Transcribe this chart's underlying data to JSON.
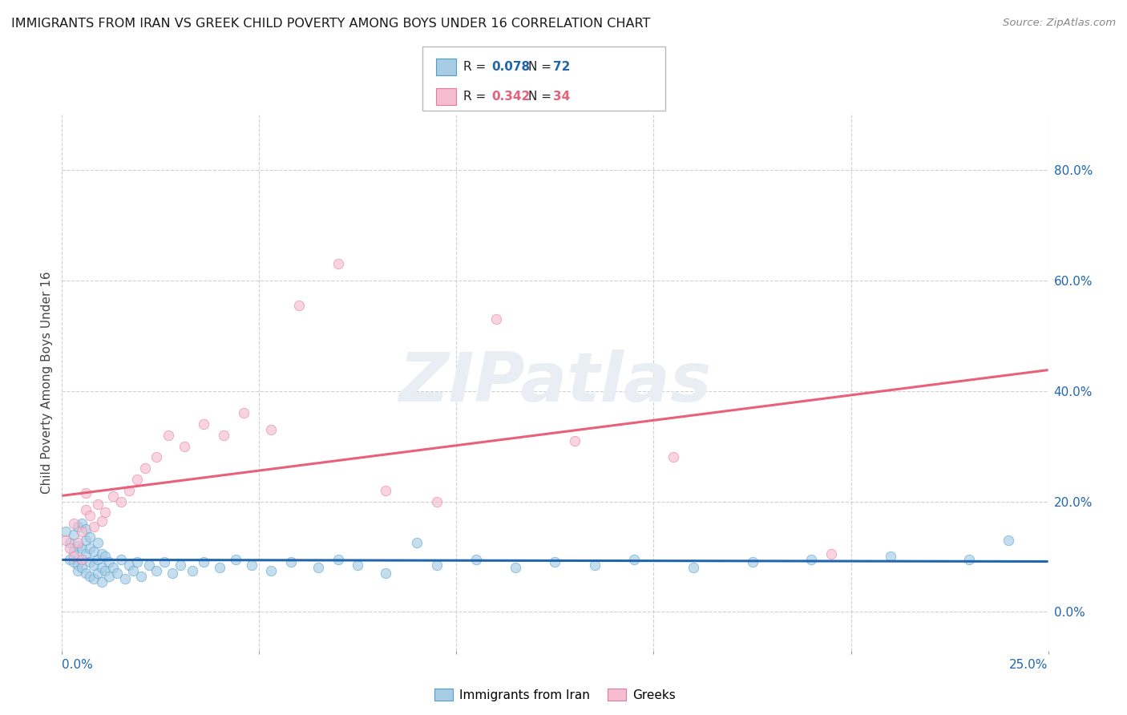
{
  "title": "IMMIGRANTS FROM IRAN VS GREEK CHILD POVERTY AMONG BOYS UNDER 16 CORRELATION CHART",
  "source": "Source: ZipAtlas.com",
  "ylabel": "Child Poverty Among Boys Under 16",
  "ytick_vals": [
    0.0,
    0.2,
    0.4,
    0.6,
    0.8
  ],
  "ytick_labels": [
    "0.0%",
    "20.0%",
    "40.0%",
    "60.0%",
    "80.0%"
  ],
  "xlim": [
    0.0,
    0.25
  ],
  "ylim": [
    -0.07,
    0.9
  ],
  "legend1_r": "0.078",
  "legend1_n": "72",
  "legend2_r": "0.342",
  "legend2_n": "34",
  "color_blue_fill": "#a8cce4",
  "color_pink_fill": "#f4bdd0",
  "color_blue_edge": "#4d9fcf",
  "color_pink_edge": "#e8789a",
  "color_blue_line": "#2166ac",
  "color_pink_line": "#e8607a",
  "color_blue_text": "#2166ac",
  "color_pink_text": "#e8607a",
  "grid_color": "#d0d0d0",
  "scatter_blue_x": [
    0.001,
    0.002,
    0.002,
    0.003,
    0.003,
    0.003,
    0.004,
    0.004,
    0.004,
    0.004,
    0.005,
    0.005,
    0.005,
    0.005,
    0.006,
    0.006,
    0.006,
    0.006,
    0.007,
    0.007,
    0.007,
    0.007,
    0.008,
    0.008,
    0.008,
    0.009,
    0.009,
    0.009,
    0.01,
    0.01,
    0.01,
    0.011,
    0.011,
    0.012,
    0.012,
    0.013,
    0.014,
    0.015,
    0.016,
    0.017,
    0.018,
    0.019,
    0.02,
    0.022,
    0.024,
    0.026,
    0.028,
    0.03,
    0.033,
    0.036,
    0.04,
    0.044,
    0.048,
    0.053,
    0.058,
    0.065,
    0.07,
    0.075,
    0.082,
    0.09,
    0.095,
    0.105,
    0.115,
    0.125,
    0.135,
    0.145,
    0.16,
    0.175,
    0.19,
    0.21,
    0.23,
    0.24
  ],
  "scatter_blue_y": [
    0.145,
    0.125,
    0.095,
    0.11,
    0.09,
    0.14,
    0.085,
    0.12,
    0.155,
    0.075,
    0.095,
    0.115,
    0.16,
    0.08,
    0.07,
    0.105,
    0.13,
    0.15,
    0.065,
    0.09,
    0.115,
    0.135,
    0.06,
    0.085,
    0.11,
    0.07,
    0.095,
    0.125,
    0.055,
    0.08,
    0.105,
    0.075,
    0.1,
    0.065,
    0.09,
    0.08,
    0.07,
    0.095,
    0.06,
    0.085,
    0.075,
    0.09,
    0.065,
    0.085,
    0.075,
    0.09,
    0.07,
    0.085,
    0.075,
    0.09,
    0.08,
    0.095,
    0.085,
    0.075,
    0.09,
    0.08,
    0.095,
    0.085,
    0.07,
    0.125,
    0.085,
    0.095,
    0.08,
    0.09,
    0.085,
    0.095,
    0.08,
    0.09,
    0.095,
    0.1,
    0.095,
    0.13
  ],
  "scatter_pink_x": [
    0.001,
    0.002,
    0.003,
    0.003,
    0.004,
    0.005,
    0.005,
    0.006,
    0.006,
    0.007,
    0.008,
    0.009,
    0.01,
    0.011,
    0.013,
    0.015,
    0.017,
    0.019,
    0.021,
    0.024,
    0.027,
    0.031,
    0.036,
    0.041,
    0.046,
    0.053,
    0.06,
    0.07,
    0.082,
    0.095,
    0.11,
    0.13,
    0.155,
    0.195
  ],
  "scatter_pink_y": [
    0.13,
    0.115,
    0.1,
    0.16,
    0.125,
    0.145,
    0.095,
    0.185,
    0.215,
    0.175,
    0.155,
    0.195,
    0.165,
    0.18,
    0.21,
    0.2,
    0.22,
    0.24,
    0.26,
    0.28,
    0.32,
    0.3,
    0.34,
    0.32,
    0.36,
    0.33,
    0.555,
    0.63,
    0.22,
    0.2,
    0.53,
    0.31,
    0.28,
    0.105
  ],
  "watermark": "ZIPatlas",
  "scatter_size": 80,
  "scatter_alpha": 0.65
}
